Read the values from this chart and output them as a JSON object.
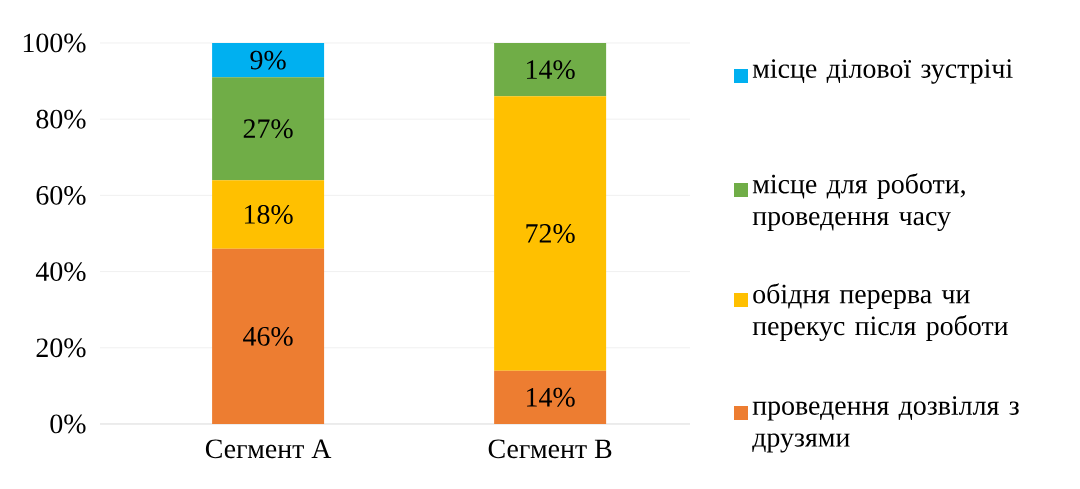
{
  "chart_data": {
    "type": "bar",
    "stacked": true,
    "categories": [
      "Сегмент A",
      "Сегмент B"
    ],
    "series": [
      {
        "name": "проведення дозвілля з друзями",
        "color": "#ed7d31",
        "values": [
          46,
          14
        ],
        "value_labels": [
          "46%",
          "14%"
        ]
      },
      {
        "name": "обідня перерва чи перекус після роботи",
        "color": "#ffc000",
        "values": [
          18,
          72
        ],
        "value_labels": [
          "18%",
          "72%"
        ]
      },
      {
        "name": "місце для роботи, проведення часу",
        "color": "#70ad47",
        "values": [
          27,
          14
        ],
        "value_labels": [
          "27%",
          "14%"
        ]
      },
      {
        "name": "місце ділової зустрічі",
        "color": "#00b0f0",
        "values": [
          9,
          0
        ],
        "value_labels": [
          "9%",
          null
        ]
      }
    ],
    "ylim": [
      0,
      100
    ],
    "yticks": [
      {
        "value": 0,
        "label": "0%"
      },
      {
        "value": 20,
        "label": "20%"
      },
      {
        "value": 40,
        "label": "40%"
      },
      {
        "value": 60,
        "label": "60%"
      },
      {
        "value": 80,
        "label": "80%"
      },
      {
        "value": 100,
        "label": "100%"
      }
    ],
    "grid": "y",
    "legend": "right"
  }
}
